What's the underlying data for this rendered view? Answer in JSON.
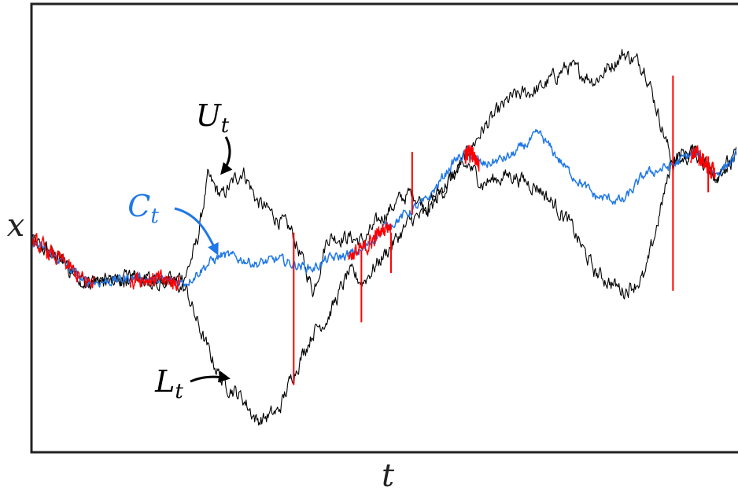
{
  "chart_data": {
    "type": "line",
    "xlabel": "t",
    "ylabel": "x",
    "xlim": [
      0,
      1
    ],
    "ylim": [
      0,
      1
    ],
    "ticks": "none",
    "grid": false,
    "legend": "none",
    "colors": {
      "upper": "#000000",
      "lower": "#000000",
      "center": "#1f77e8",
      "coupled": "#ff0000",
      "axes": "#222222"
    },
    "annotations": [
      {
        "name": "U",
        "sub": "t",
        "color": "#000000"
      },
      {
        "name": "C",
        "sub": "t",
        "color": "#1f77e8"
      },
      {
        "name": "L",
        "sub": "t",
        "color": "#000000"
      }
    ],
    "series": [
      {
        "key": "upper",
        "x": [
          0.0,
          0.04,
          0.075,
          0.1,
          0.15,
          0.2,
          0.22,
          0.235,
          0.25,
          0.27,
          0.3,
          0.32,
          0.35,
          0.37,
          0.4,
          0.42,
          0.45,
          0.47,
          0.5,
          0.52,
          0.54,
          0.56,
          0.6,
          0.62,
          0.64,
          0.68,
          0.72,
          0.76,
          0.8,
          0.84,
          0.87,
          0.91,
          0.94,
          0.97,
          1.0
        ],
        "y": [
          0.47,
          0.43,
          0.38,
          0.38,
          0.39,
          0.38,
          0.4,
          0.47,
          0.61,
          0.57,
          0.63,
          0.56,
          0.52,
          0.49,
          0.36,
          0.48,
          0.48,
          0.47,
          0.53,
          0.56,
          0.58,
          0.55,
          0.62,
          0.67,
          0.72,
          0.79,
          0.81,
          0.86,
          0.83,
          0.89,
          0.86,
          0.64,
          0.67,
          0.62,
          0.66
        ]
      },
      {
        "key": "lower",
        "x": [
          0.0,
          0.04,
          0.075,
          0.1,
          0.15,
          0.2,
          0.22,
          0.235,
          0.25,
          0.27,
          0.3,
          0.32,
          0.35,
          0.37,
          0.4,
          0.42,
          0.45,
          0.47,
          0.5,
          0.52,
          0.54,
          0.56,
          0.6,
          0.62,
          0.64,
          0.68,
          0.72,
          0.76,
          0.8,
          0.84,
          0.87,
          0.91,
          0.94,
          0.97,
          1.0
        ],
        "y": [
          0.47,
          0.43,
          0.38,
          0.38,
          0.39,
          0.38,
          0.36,
          0.29,
          0.23,
          0.16,
          0.12,
          0.07,
          0.09,
          0.17,
          0.27,
          0.3,
          0.4,
          0.38,
          0.44,
          0.48,
          0.52,
          0.53,
          0.62,
          0.64,
          0.6,
          0.62,
          0.59,
          0.52,
          0.4,
          0.36,
          0.39,
          0.66,
          0.67,
          0.62,
          0.66
        ]
      },
      {
        "key": "center",
        "x": [
          0.0,
          0.04,
          0.075,
          0.1,
          0.15,
          0.2,
          0.22,
          0.235,
          0.25,
          0.27,
          0.3,
          0.32,
          0.35,
          0.37,
          0.4,
          0.42,
          0.45,
          0.47,
          0.5,
          0.52,
          0.54,
          0.56,
          0.6,
          0.62,
          0.64,
          0.68,
          0.72,
          0.76,
          0.8,
          0.84,
          0.87,
          0.91,
          0.94,
          0.97,
          1.0
        ],
        "y": [
          0.47,
          0.43,
          0.38,
          0.38,
          0.39,
          0.38,
          0.38,
          0.4,
          0.42,
          0.44,
          0.43,
          0.42,
          0.43,
          0.42,
          0.41,
          0.43,
          0.44,
          0.45,
          0.5,
          0.52,
          0.54,
          0.56,
          0.65,
          0.67,
          0.64,
          0.66,
          0.71,
          0.63,
          0.57,
          0.56,
          0.62,
          0.64,
          0.67,
          0.62,
          0.66
        ]
      }
    ],
    "coupled_segments": [
      [
        0.0,
        0.09
      ],
      [
        0.14,
        0.21
      ],
      [
        0.45,
        0.51
      ],
      [
        0.615,
        0.635
      ],
      [
        0.935,
        0.97
      ]
    ],
    "jumps": [
      {
        "x": 0.372,
        "from": 0.15,
        "to": 0.49
      },
      {
        "x": 0.468,
        "from": 0.29,
        "to": 0.45
      },
      {
        "x": 0.51,
        "from": 0.4,
        "to": 0.49
      },
      {
        "x": 0.54,
        "from": 0.53,
        "to": 0.67
      },
      {
        "x": 0.91,
        "from": 0.36,
        "to": 0.84
      },
      {
        "x": 0.96,
        "from": 0.58,
        "to": 0.66
      }
    ]
  }
}
